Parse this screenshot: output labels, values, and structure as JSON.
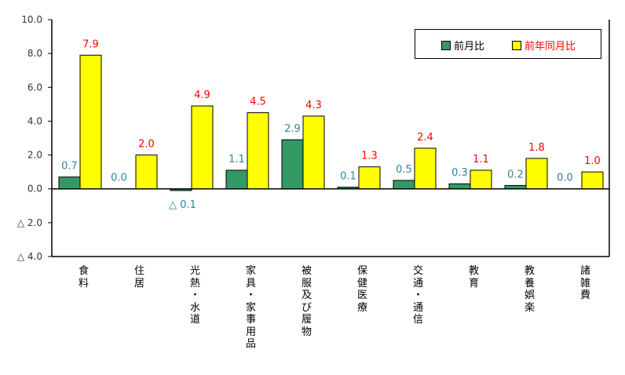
{
  "chart_data": {
    "type": "bar",
    "categories": [
      "食料",
      "住居",
      "光熱・水道",
      "家具・家事用品",
      "被服及び履物",
      "保健医療",
      "交通・通信",
      "教育",
      "教養娯楽",
      "諸雑費"
    ],
    "series": [
      {
        "name": "前月比",
        "values": [
          0.7,
          0.0,
          -0.1,
          1.1,
          2.9,
          0.1,
          0.5,
          0.3,
          0.2,
          0.0
        ],
        "labels": [
          "0.7",
          "0.0",
          "△ 0.1",
          "1.1",
          "2.9",
          "0.1",
          "0.5",
          "0.3",
          "0.2",
          "0.0"
        ],
        "color": "#339966",
        "label_color": "#31849B"
      },
      {
        "name": "前年同月比",
        "values": [
          7.9,
          2.0,
          4.9,
          4.5,
          4.3,
          1.3,
          2.4,
          1.1,
          1.8,
          1.0
        ],
        "labels": [
          "7.9",
          "2.0",
          "4.9",
          "4.5",
          "4.3",
          "1.3",
          "2.4",
          "1.1",
          "1.8",
          "1.0"
        ],
        "color": "#FFFF00",
        "label_color": "#FF0000"
      }
    ],
    "ylim": [
      -4,
      10
    ],
    "yticks": [
      10,
      8,
      6,
      4,
      2,
      0,
      -2,
      -4
    ],
    "ytick_labels": [
      "10.0",
      "8.0",
      "6.0",
      "4.0",
      "2.0",
      "0.0",
      "△ 2.0",
      "△ 4.0"
    ],
    "legend_position": "top-right",
    "grid": false
  }
}
